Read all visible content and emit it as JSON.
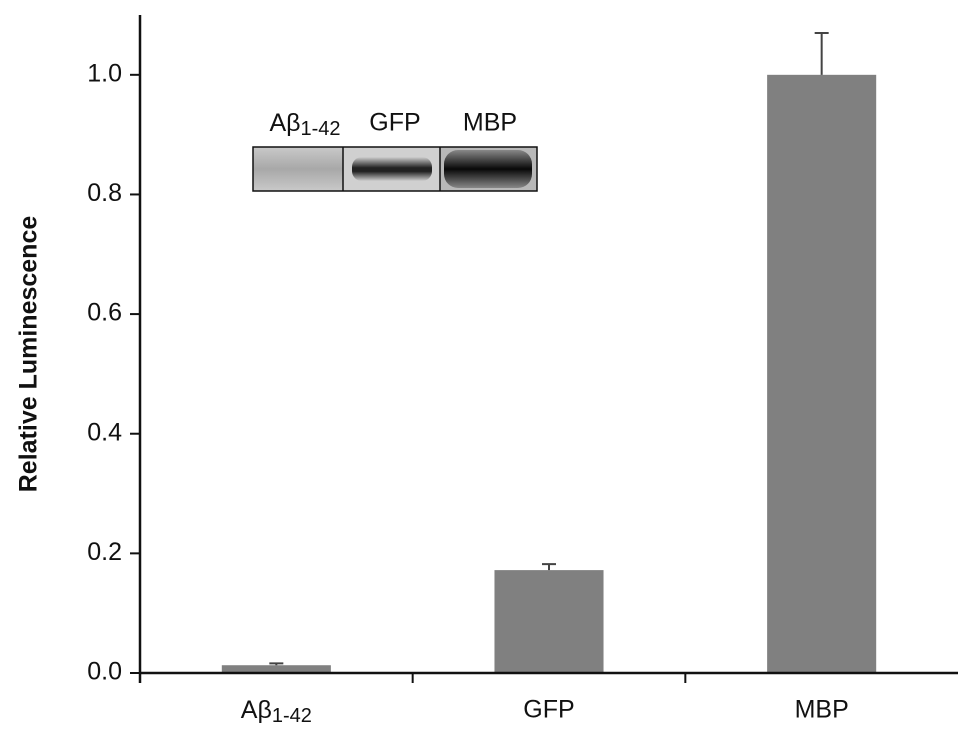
{
  "chart_data": {
    "type": "bar",
    "y_label": "Relative Luminescence",
    "categories": [
      "Aβ1-42",
      "GFP",
      "MBP"
    ],
    "values": [
      0.013,
      0.172,
      1.0
    ],
    "errors": [
      0.003,
      0.01,
      0.07
    ],
    "color": "#808080",
    "ylim": [
      0,
      1.1
    ],
    "yticks": [
      {
        "value": 0,
        "label": "0.0"
      },
      0.2,
      0.4,
      0.6,
      0.8,
      {
        "value": 1,
        "label": "1.0"
      }
    ],
    "inset_labels": [
      "Aβ1-42",
      "GFP",
      "MBP"
    ]
  }
}
